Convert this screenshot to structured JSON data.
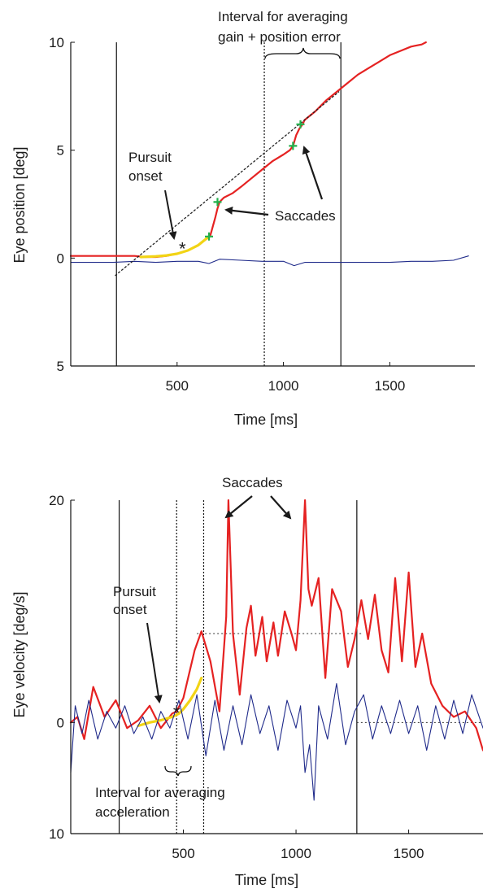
{
  "chart_data": [
    {
      "type": "line",
      "xlabel": "Time [ms]",
      "ylabel": "Eye position [deg]",
      "xlim": [
        0,
        1900
      ],
      "ylim": [
        -5,
        10
      ],
      "xticks": [
        500,
        1000,
        1500
      ],
      "yticks": [
        10,
        5,
        0,
        -5
      ],
      "ytick_labels": [
        "10",
        "5",
        "0",
        "5"
      ],
      "series": [
        {
          "role": "eye_position_target_direction",
          "color": "#e52222",
          "x": [
            0,
            100,
            200,
            300,
            350,
            400,
            450,
            500,
            550,
            600,
            640,
            655,
            680,
            690,
            700,
            720,
            760,
            800,
            850,
            900,
            950,
            1000,
            1030,
            1045,
            1060,
            1075,
            1090,
            1100,
            1150,
            1200,
            1250,
            1300,
            1350,
            1400,
            1450,
            1500,
            1550,
            1600,
            1650,
            1670
          ],
          "y": [
            0.1,
            0.1,
            0.1,
            0.1,
            0.05,
            0.05,
            0.1,
            0.2,
            0.35,
            0.6,
            0.9,
            1.0,
            1.9,
            2.3,
            2.6,
            2.8,
            3.0,
            3.3,
            3.7,
            4.1,
            4.5,
            4.8,
            5.0,
            5.2,
            5.7,
            6.0,
            6.2,
            6.4,
            6.8,
            7.3,
            7.7,
            8.1,
            8.5,
            8.8,
            9.1,
            9.4,
            9.6,
            9.8,
            9.9,
            10.0
          ]
        },
        {
          "role": "pursuit_segment",
          "color": "#f2d415",
          "x": [
            330,
            400,
            450,
            500,
            550,
            600,
            650
          ],
          "y": [
            0.05,
            0.08,
            0.12,
            0.2,
            0.35,
            0.6,
            1.0
          ]
        },
        {
          "role": "eye_position_orthogonal",
          "color": "#1f2a8a",
          "x": [
            0,
            100,
            200,
            300,
            400,
            500,
            600,
            650,
            700,
            800,
            900,
            1000,
            1050,
            1100,
            1200,
            1300,
            1400,
            1500,
            1600,
            1700,
            1800,
            1870
          ],
          "y": [
            -0.2,
            -0.2,
            -0.2,
            -0.15,
            -0.2,
            -0.15,
            -0.15,
            -0.25,
            -0.05,
            -0.1,
            -0.15,
            -0.15,
            -0.35,
            -0.2,
            -0.2,
            -0.2,
            -0.2,
            -0.2,
            -0.15,
            -0.15,
            -0.1,
            0.1
          ]
        },
        {
          "role": "linear_fit",
          "color": "#222222",
          "dotted": true,
          "x": [
            210,
            1260
          ],
          "y": [
            -0.8,
            7.7
          ]
        }
      ],
      "vlines": [
        {
          "x": 215,
          "style": "solid"
        },
        {
          "x": 910,
          "style": "dotted"
        },
        {
          "x": 1270,
          "style": "solid"
        }
      ],
      "markers": [
        {
          "symbol": "star",
          "x": 525,
          "y": 0.45
        },
        {
          "symbol": "plus",
          "x": 650,
          "y": 1.0
        },
        {
          "symbol": "plus",
          "x": 690,
          "y": 2.6
        },
        {
          "symbol": "plus",
          "x": 1045,
          "y": 5.2
        },
        {
          "symbol": "plus",
          "x": 1080,
          "y": 6.2
        }
      ],
      "annotations": {
        "interval": "Interval for averaging",
        "interval_line2": "gain + position error",
        "pursuit": "Pursuit",
        "pursuit_line2": "onset",
        "saccades": "Saccades"
      }
    },
    {
      "type": "line",
      "xlabel": "Time [ms]",
      "ylabel": "Eye velocity [deg/s]",
      "xlim": [
        0,
        1830
      ],
      "ylim": [
        -10,
        20
      ],
      "xticks": [
        500,
        1000,
        1500
      ],
      "yticks": [
        20,
        0,
        -10
      ],
      "ytick_labels": [
        "20",
        "0",
        "10"
      ],
      "series": [
        {
          "role": "eye_velocity_target_direction",
          "color": "#e52222",
          "x": [
            0,
            30,
            60,
            100,
            150,
            200,
            250,
            300,
            350,
            400,
            450,
            470,
            500,
            550,
            580,
            620,
            660,
            690,
            700,
            720,
            750,
            780,
            800,
            820,
            850,
            870,
            900,
            920,
            950,
            980,
            1000,
            1020,
            1040,
            1055,
            1070,
            1100,
            1130,
            1160,
            1200,
            1230,
            1260,
            1290,
            1320,
            1350,
            1380,
            1410,
            1440,
            1470,
            1500,
            1530,
            1560,
            1600,
            1650,
            1700,
            1750,
            1800,
            1830
          ],
          "y": [
            0,
            0.5,
            -1.5,
            3.2,
            0.5,
            2.0,
            -0.5,
            0.2,
            1.5,
            -0.5,
            0.8,
            1.0,
            2.2,
            6.5,
            8.2,
            5.5,
            1.0,
            9.5,
            20.0,
            8.0,
            2.5,
            8.5,
            10.5,
            6.0,
            9.5,
            5.5,
            9.0,
            6.0,
            10.0,
            8.0,
            6.5,
            11.0,
            20.0,
            12.0,
            10.5,
            13.0,
            4.0,
            12.0,
            10.0,
            5.0,
            7.5,
            11.0,
            7.5,
            11.5,
            6.5,
            4.5,
            13.0,
            5.5,
            13.5,
            5.0,
            8.0,
            3.5,
            1.5,
            0.5,
            1.0,
            -0.5,
            -2.5
          ]
        },
        {
          "role": "pursuit_segment",
          "color": "#f2d415",
          "x": [
            300,
            350,
            400,
            450,
            480,
            500,
            530,
            560,
            580
          ],
          "y": [
            -0.3,
            0.0,
            0.2,
            0.5,
            0.8,
            1.2,
            2.0,
            3.0,
            4.0
          ]
        },
        {
          "role": "eye_velocity_orthogonal",
          "color": "#1f2a8a",
          "x": [
            0,
            20,
            50,
            80,
            120,
            160,
            200,
            240,
            280,
            320,
            360,
            400,
            440,
            480,
            520,
            560,
            600,
            640,
            680,
            720,
            760,
            800,
            840,
            880,
            920,
            960,
            1000,
            1020,
            1040,
            1060,
            1080,
            1100,
            1140,
            1180,
            1220,
            1260,
            1300,
            1340,
            1380,
            1420,
            1460,
            1500,
            1540,
            1580,
            1620,
            1660,
            1700,
            1740,
            1780,
            1830
          ],
          "y": [
            -4.5,
            1.5,
            -1.0,
            2.0,
            -1.5,
            1.0,
            -0.5,
            1.5,
            -1.0,
            0.5,
            -1.5,
            1.0,
            -0.5,
            2.0,
            -1.5,
            2.5,
            -3.0,
            2.0,
            -2.5,
            1.5,
            -2.0,
            2.5,
            -1.0,
            1.5,
            -2.5,
            2.0,
            -0.5,
            1.5,
            -4.5,
            -2.0,
            -7.0,
            1.5,
            -1.5,
            3.5,
            -2.0,
            1.0,
            2.5,
            -1.5,
            1.5,
            -1.0,
            2.0,
            -1.0,
            1.5,
            -2.5,
            1.5,
            -1.5,
            2.0,
            -1.0,
            2.5,
            -0.5
          ]
        }
      ],
      "hlines": [
        {
          "y": 8.0,
          "from": 560,
          "to": 1290,
          "style": "dotted"
        },
        {
          "y": 0,
          "from": 1270,
          "to": 1830,
          "style": "dotted"
        }
      ],
      "vlines": [
        {
          "x": 215,
          "style": "solid"
        },
        {
          "x": 470,
          "style": "dotted"
        },
        {
          "x": 590,
          "style": "dotted"
        },
        {
          "x": 1270,
          "style": "solid"
        }
      ],
      "markers": [
        {
          "symbol": "star",
          "x": 470,
          "y": 0.9
        }
      ],
      "annotations": {
        "saccades": "Saccades",
        "pursuit": "Pursuit",
        "pursuit_line2": "onset",
        "interval": "Interval for averaging",
        "interval_line2": "acceleration"
      }
    }
  ]
}
